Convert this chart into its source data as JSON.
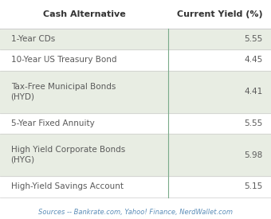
{
  "title_col1": "Cash Alternative",
  "title_col2": "Current Yield (%)",
  "rows": [
    {
      "label": "1-Year CDs",
      "value": "5.55",
      "shaded": true
    },
    {
      "label": "10-Year US Treasury Bond",
      "value": "4.45",
      "shaded": false
    },
    {
      "label": "Tax-Free Municipal Bonds\n(HYD)",
      "value": "4.41",
      "shaded": true
    },
    {
      "label": "5-Year Fixed Annuity",
      "value": "5.55",
      "shaded": false
    },
    {
      "label": "High Yield Corporate Bonds\n(HYG)",
      "value": "5.98",
      "shaded": true
    },
    {
      "label": "High-Yield Savings Account",
      "value": "5.15",
      "shaded": false
    }
  ],
  "footer": "Sources -- Bankrate.com, Yahoo! Finance, NerdWallet.com",
  "bg_color": "#ffffff",
  "shaded_color": "#e8ede3",
  "header_color": "#ffffff",
  "text_color": "#5a5a5a",
  "header_text_color": "#333333",
  "footer_color": "#5b8db8",
  "divider_color": "#7aab8a",
  "header_divider_color": "#cccccc"
}
